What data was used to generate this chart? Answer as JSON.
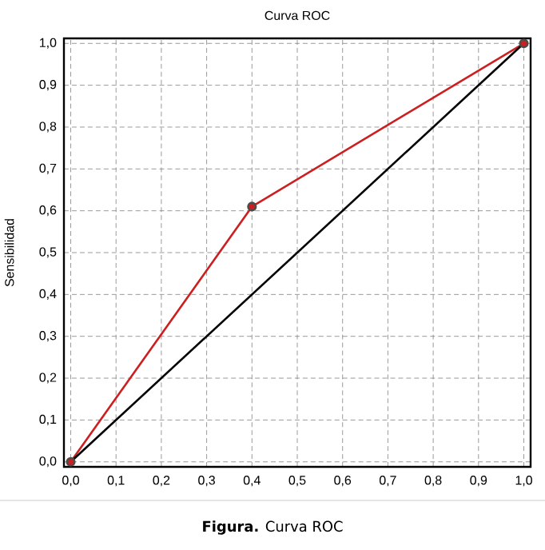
{
  "chart_data": {
    "type": "line",
    "title": "Curva ROC",
    "ylabel": "Sensibilidad",
    "annotations": [
      "**Figura.** Curva ROC"
    ],
    "series": [
      {
        "color": "#cc1f1f",
        "marker": "circle",
        "x": [
          0,
          0.4,
          1
        ],
        "values": [
          0,
          0.61,
          1
        ]
      },
      {
        "color": "#000000",
        "marker": "none",
        "x": [
          0,
          1
        ],
        "values": [
          0,
          1
        ]
      }
    ],
    "xlim": [
      -0.015,
      1.015
    ],
    "ylim": [
      -0.012,
      1.012
    ],
    "xticks": [
      {
        "value": 0,
        "label": "0,0"
      },
      {
        "value": 0.1,
        "label": "0,1"
      },
      {
        "value": 0.2,
        "label": "0,2"
      },
      {
        "value": 0.3,
        "label": "0,3"
      },
      {
        "value": 0.4,
        "label": "0,4"
      },
      {
        "value": 0.5,
        "label": "0,5"
      },
      {
        "value": 0.6,
        "label": "0,6"
      },
      {
        "value": 0.7,
        "label": "0,7"
      },
      {
        "value": 0.8,
        "label": "0,8"
      },
      {
        "value": 0.9,
        "label": "0,9"
      },
      {
        "value": 1,
        "label": "1,0"
      }
    ],
    "yticks": [
      {
        "value": 0,
        "label": "0,0"
      },
      {
        "value": 0.1,
        "label": "0,1"
      },
      {
        "value": 0.2,
        "label": "0,2"
      },
      {
        "value": 0.3,
        "label": "0,3"
      },
      {
        "value": 0.4,
        "label": "0,4"
      },
      {
        "value": 0.5,
        "label": "0,5"
      },
      {
        "value": 0.6,
        "label": "0,6"
      },
      {
        "value": 0.7,
        "label": "0,7"
      },
      {
        "value": 0.8,
        "label": "0,8"
      },
      {
        "value": 0.9,
        "label": "0,9"
      },
      {
        "value": 1,
        "label": "1,0"
      }
    ],
    "grid": true,
    "line_style": "solid"
  }
}
